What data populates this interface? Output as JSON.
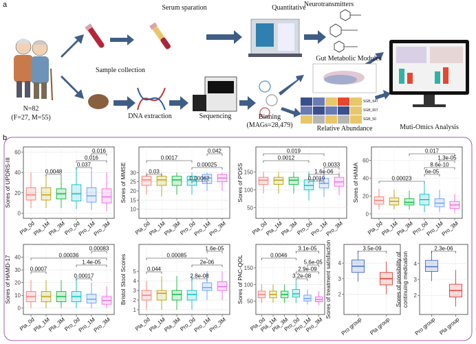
{
  "figure_a": {
    "label": "a",
    "serum": "Serum sparation",
    "quantitative": "Quantitative",
    "neuro": "Neurotransmitters",
    "sample": "Sample collection",
    "n": "N=82",
    "sex": "(F=27, M=55)",
    "dna": "DNA extraction",
    "seq": "Sequencing",
    "binning": "Binning",
    "mags": "(MAGs=28,479)",
    "gmm": "Gut Metabolic Modules",
    "abundance": "Relative Abundance",
    "sgb": [
      "SGB_647",
      "SGB_607",
      "SGB_50"
    ],
    "multi": "Muti-Omics Analysis"
  },
  "figure_b": {
    "label": "b"
  },
  "chart_data": [
    {
      "type": "box",
      "ylabel": "Sores of UPDRS-III",
      "categories": [
        "Pla_0d",
        "Pla_1M",
        "Pla_3M",
        "Pro_0d",
        "Pro_1M",
        "Pro_3M"
      ],
      "colors": [
        "#f8766d",
        "#b79f00",
        "#00ba38",
        "#00bfc4",
        "#619cff",
        "#f564e3"
      ],
      "boxes": {
        "low": [
          5,
          5,
          5,
          4,
          3,
          2
        ],
        "q1": [
          13,
          13,
          14,
          12,
          11,
          10
        ],
        "median": [
          18,
          18,
          19,
          19,
          17,
          16
        ],
        "q3": [
          25,
          25,
          24,
          28,
          25,
          24
        ],
        "high": [
          40,
          38,
          36,
          45,
          42,
          40
        ]
      },
      "ylim": [
        -5,
        65
      ],
      "yticks": [
        0,
        20,
        40,
        60
      ],
      "grid": true,
      "brackets": [
        {
          "groups": [
            "Pro_1M",
            "Pro_3M"
          ],
          "p": "0.016"
        },
        {
          "groups": [
            "Pro_0d",
            "Pro_3M"
          ],
          "p": "0.016"
        },
        {
          "groups": [
            "Pro_0d",
            "Pro_1M"
          ],
          "p": "0.037"
        },
        {
          "groups": [
            "Pla_1M",
            "Pla_3M"
          ],
          "p": "0.0048"
        }
      ]
    },
    {
      "type": "box",
      "ylabel": "Sores of MMSE",
      "categories": [
        "Pla_0d",
        "Pla_1M",
        "Pla_3M",
        "Pro_0d",
        "Pro_1M",
        "Pro_3M"
      ],
      "colors": [
        "#f8766d",
        "#b79f00",
        "#00ba38",
        "#00bfc4",
        "#619cff",
        "#f564e3"
      ],
      "boxes": {
        "low": [
          18,
          17,
          18,
          18,
          20,
          20
        ],
        "q1": [
          23,
          23,
          23,
          23,
          24,
          25
        ],
        "median": [
          26,
          26,
          26,
          26,
          27,
          27
        ],
        "q3": [
          28,
          28,
          28,
          28,
          29,
          29
        ],
        "high": [
          30,
          30,
          30,
          30,
          30,
          30
        ]
      },
      "ylim": [
        5,
        44
      ],
      "yticks": [
        10,
        15,
        20,
        25,
        30
      ],
      "grid": true,
      "brackets": [
        {
          "groups": [
            "Pro_1M",
            "Pro_3M"
          ],
          "p": "0.042"
        },
        {
          "groups": [
            "Pla_0d",
            "Pro_0d"
          ],
          "p": "0.0017"
        },
        {
          "groups": [
            "Pro_0d",
            "Pro_3M"
          ],
          "p": "0.00025"
        },
        {
          "groups": [
            "Pla_0d",
            "Pla_1M"
          ],
          "p": "0.03"
        },
        {
          "groups": [
            "Pro_0d",
            "Pro_1M"
          ],
          "p": "0.00062"
        }
      ]
    },
    {
      "type": "box",
      "ylabel": "Sores of PDSS",
      "categories": [
        "Pla_0d",
        "Pla_1M",
        "Pla_3M",
        "Pro_0d",
        "Pro_1M",
        "Pro_3M"
      ],
      "colors": [
        "#f8766d",
        "#b79f00",
        "#00ba38",
        "#00bfc4",
        "#619cff",
        "#f564e3"
      ],
      "boxes": {
        "low": [
          90,
          90,
          90,
          70,
          80,
          85
        ],
        "q1": [
          115,
          115,
          115,
          100,
          105,
          110
        ],
        "median": [
          127,
          127,
          127,
          112,
          118,
          122
        ],
        "q3": [
          135,
          135,
          135,
          128,
          132,
          135
        ],
        "high": [
          150,
          150,
          150,
          150,
          150,
          150
        ]
      },
      "ylim": [
        20,
        220
      ],
      "yticks": [
        50,
        100,
        150
      ],
      "grid": true,
      "brackets": [
        {
          "groups": [
            "Pla_0d",
            "Pro_1M"
          ],
          "p": "0.019"
        },
        {
          "groups": [
            "Pla_0d",
            "Pro_0d"
          ],
          "p": "0.0012"
        },
        {
          "groups": [
            "Pro_1M",
            "Pro_3M"
          ],
          "p": "0.0033"
        },
        {
          "groups": [
            "Pro_0d",
            "Pro_3M"
          ],
          "p": "1.6e-06"
        },
        {
          "groups": [
            "Pro_0d",
            "Pro_1M"
          ],
          "p": "0.0019"
        }
      ]
    },
    {
      "type": "box",
      "ylabel": "Sores of HAMA",
      "categories": [
        "Pla_0d",
        "Pla_1M",
        "Pla_3M",
        "Pro_0d",
        "Pro_1M",
        "Pro_3M"
      ],
      "colors": [
        "#f8766d",
        "#b79f00",
        "#00ba38",
        "#00bfc4",
        "#619cff",
        "#f564e3"
      ],
      "boxes": {
        "low": [
          5,
          5,
          5,
          2,
          2,
          1
        ],
        "q1": [
          11,
          10,
          10,
          10,
          8,
          6
        ],
        "median": [
          15,
          14,
          13,
          16,
          12,
          10
        ],
        "q3": [
          19,
          18,
          17,
          22,
          17,
          14
        ],
        "high": [
          28,
          27,
          26,
          35,
          27,
          22
        ]
      },
      "ylim": [
        -5,
        75
      ],
      "yticks": [
        0,
        20,
        40,
        60
      ],
      "grid": true,
      "brackets": [
        {
          "groups": [
            "Pla_3M",
            "Pro_3M"
          ],
          "p": "0.017"
        },
        {
          "groups": [
            "Pro_1M",
            "Pro_3M"
          ],
          "p": "1.3e-05"
        },
        {
          "groups": [
            "Pro_0d",
            "Pro_3M"
          ],
          "p": "8.6e-10"
        },
        {
          "groups": [
            "Pro_0d",
            "Pro_1M"
          ],
          "p": "6e-05"
        },
        {
          "groups": [
            "Pla_0d",
            "Pro_0d"
          ],
          "p": "0.00023"
        }
      ]
    },
    {
      "type": "box",
      "ylabel": "Sores of HAMD-17",
      "categories": [
        "Pla_0d",
        "Pla_1M",
        "Pla_3M",
        "Pro_0d",
        "Pro_1M",
        "Pro_3M"
      ],
      "colors": [
        "#f8766d",
        "#b79f00",
        "#00ba38",
        "#00bfc4",
        "#619cff",
        "#f564e3"
      ],
      "boxes": {
        "low": [
          0,
          0,
          0,
          0,
          0,
          0
        ],
        "q1": [
          5,
          5,
          5,
          5,
          4,
          3
        ],
        "median": [
          9,
          9,
          9,
          9,
          7,
          6
        ],
        "q3": [
          13,
          13,
          13,
          13,
          11,
          9
        ],
        "high": [
          22,
          22,
          22,
          24,
          20,
          17
        ]
      },
      "ylim": [
        -5,
        50
      ],
      "yticks": [
        0,
        10,
        20,
        30,
        40
      ],
      "grid": true,
      "brackets": [
        {
          "groups": [
            "Pro_1M",
            "Pro_3M"
          ],
          "p": "0.00083"
        },
        {
          "groups": [
            "Pla_0d",
            "Pro_3M"
          ],
          "p": "0.00036"
        },
        {
          "groups": [
            "Pro_0d",
            "Pro_3M"
          ],
          "p": "1.4e-05"
        },
        {
          "groups": [
            "Pla_0d",
            "Pla_1M"
          ],
          "p": "0.0007"
        },
        {
          "groups": [
            "Pro_0d",
            "Pro_1M"
          ],
          "p": "0.00017"
        }
      ]
    },
    {
      "type": "box",
      "ylabel": "Bristol Stool Scores",
      "categories": [
        "Pla_0d",
        "Pla_1M",
        "Pla_3M",
        "Pro_0d",
        "Pro_1M",
        "Pro_3M"
      ],
      "colors": [
        "#f8766d",
        "#b79f00",
        "#00ba38",
        "#00bfc4",
        "#619cff",
        "#f564e3"
      ],
      "boxes": {
        "low": [
          1,
          1,
          1,
          1,
          2,
          2
        ],
        "q1": [
          2,
          2,
          2,
          2,
          3,
          3
        ],
        "median": [
          2.5,
          2.7,
          2.6,
          2.6,
          3.3,
          3.4
        ],
        "q3": [
          3,
          3,
          3,
          3,
          3.8,
          3.9
        ],
        "high": [
          4,
          4.5,
          4.5,
          4.5,
          5,
          5
        ]
      },
      "ylim": [
        0.5,
        7.8
      ],
      "yticks": [
        1,
        2,
        3,
        4,
        5
      ],
      "grid": true,
      "brackets": [
        {
          "groups": [
            "Pro_1M",
            "Pro_3M"
          ],
          "p": "1.6e-05"
        },
        {
          "groups": [
            "Pla_0d",
            "Pro_1M"
          ],
          "p": "0.00085"
        },
        {
          "groups": [
            "Pro_0d",
            "Pro_3M"
          ],
          "p": "2e-06"
        },
        {
          "groups": [
            "Pla_0d",
            "Pla_1M"
          ],
          "p": "0.044"
        },
        {
          "groups": [
            "Pro_0d",
            "Pro_1M"
          ],
          "p": "2.8e-08"
        }
      ]
    },
    {
      "type": "box",
      "ylabel": "Sores of PAC-QOL",
      "categories": [
        "Pla_0d",
        "Pla_1M",
        "Pla_3M",
        "Pro_0d",
        "Pro_1M",
        "Pro_3M"
      ],
      "colors": [
        "#f8766d",
        "#b79f00",
        "#00ba38",
        "#00bfc4",
        "#619cff",
        "#f564e3"
      ],
      "boxes": {
        "low": [
          45,
          45,
          45,
          45,
          40,
          38
        ],
        "q1": [
          60,
          60,
          60,
          62,
          50,
          48
        ],
        "median": [
          70,
          70,
          70,
          72,
          58,
          55
        ],
        "q3": [
          80,
          80,
          80,
          85,
          68,
          63
        ],
        "high": [
          100,
          100,
          100,
          110,
          85,
          80
        ]
      },
      "ylim": [
        10,
        220
      ],
      "yticks": [
        50,
        100,
        150
      ],
      "grid": true,
      "brackets": [
        {
          "groups": [
            "Pro_0d",
            "Pro_3M"
          ],
          "p": "3.1e-05"
        },
        {
          "groups": [
            "Pla_0d",
            "Pro_0d"
          ],
          "p": "0.0046"
        },
        {
          "groups": [
            "Pro_1M",
            "Pro_3M"
          ],
          "p": "5.6e-05"
        },
        {
          "groups": [
            "Pro_0d",
            "Pro_3M"
          ],
          "p": "2.9e-09"
        },
        {
          "groups": [
            "Pro_0d",
            "Pro_1M"
          ],
          "p": "3.2e-08"
        }
      ]
    },
    {
      "type": "box",
      "ylabel": "Sores of treatment satisfaction",
      "categories": [
        "Pro group",
        "Pla group"
      ],
      "colors": [
        "#3d67c6",
        "#e0392f"
      ],
      "boxes": {
        "low": [
          2.8,
          2
        ],
        "q1": [
          3.4,
          2.6
        ],
        "median": [
          3.8,
          3.0
        ],
        "q3": [
          4.2,
          3.4
        ],
        "high": [
          4.8,
          4.1
        ]
      },
      "ylim": [
        0.7,
        5.2
      ],
      "yticks": [
        2,
        3,
        4
      ],
      "grid": true,
      "brackets": [
        {
          "groups": [
            "Pro group",
            "Pla group"
          ],
          "p": "3.5e-09"
        }
      ]
    },
    {
      "type": "box",
      "ylabel": [
        "Sores of possibility of",
        "continuing medication"
      ],
      "categories": [
        "Pro group",
        "Pla group"
      ],
      "colors": [
        "#3d67c6",
        "#e0392f"
      ],
      "boxes": {
        "low": [
          2.9,
          1.3
        ],
        "q1": [
          3.5,
          1.9
        ],
        "median": [
          3.8,
          2.3
        ],
        "q3": [
          4.2,
          2.7
        ],
        "high": [
          4.8,
          3.6
        ]
      },
      "ylim": [
        0.8,
        5.2
      ],
      "yticks": [
        2,
        3,
        4
      ],
      "grid": true,
      "brackets": [
        {
          "groups": [
            "Pro group",
            "Pla group"
          ],
          "p": "2.3e-06"
        }
      ]
    }
  ]
}
